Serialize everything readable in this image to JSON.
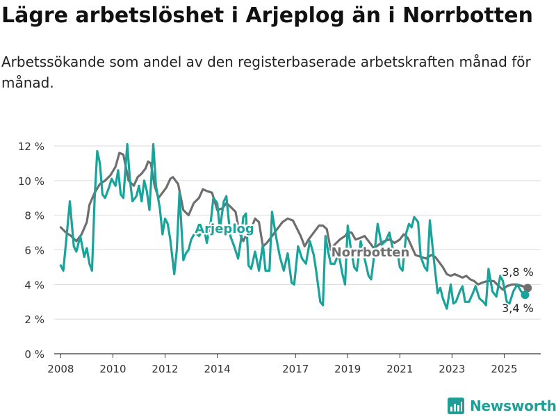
{
  "header": {
    "title": "Lägre arbetslöshet i Arjeplog än i Norrbotten",
    "subtitle": "Arbetssökande som andel av den registerbaserade arbetskraften månad för månad."
  },
  "brand": {
    "name": "Newsworthy"
  },
  "chart_data": {
    "type": "line",
    "title": "Lägre arbetslöshet i Arjeplog än i Norrbotten",
    "subtitle": "Arbetssökande som andel av den registerbaserade arbetskraften månad för månad.",
    "xlabel": "",
    "ylabel": "",
    "xlim": [
      2007.75,
      2026.4
    ],
    "ylim": [
      0,
      12
    ],
    "grid": true,
    "legend": "inline",
    "x_ticks": [
      2008,
      2010,
      2012,
      2014,
      2017,
      2019,
      2021,
      2023,
      2025
    ],
    "x_tick_labels": [
      "2008",
      "2010",
      "2012",
      "2014",
      "2017",
      "2019",
      "2021",
      "2023",
      "2025"
    ],
    "y_ticks": [
      0,
      2,
      4,
      6,
      8,
      10,
      12
    ],
    "y_tick_labels": [
      "0 %",
      "2 %",
      "4 %",
      "6 %",
      "8 %",
      "10 %",
      "12 %"
    ],
    "colors": {
      "Arjeplog": "#1aa39a",
      "Norrbotten": "#6e6e6e"
    },
    "series": [
      {
        "name": "Norrbotten",
        "color": "#6e6e6e",
        "label": "Norrbotten",
        "end_label": "3,8 %",
        "points": [
          [
            2008.0,
            7.3
          ],
          [
            2008.2,
            7.0
          ],
          [
            2008.4,
            6.8
          ],
          [
            2008.6,
            6.5
          ],
          [
            2008.8,
            6.9
          ],
          [
            2009.0,
            7.6
          ],
          [
            2009.1,
            8.6
          ],
          [
            2009.3,
            9.3
          ],
          [
            2009.5,
            9.8
          ],
          [
            2009.7,
            10.0
          ],
          [
            2009.9,
            10.3
          ],
          [
            2010.1,
            10.8
          ],
          [
            2010.25,
            11.6
          ],
          [
            2010.4,
            11.5
          ],
          [
            2010.6,
            10.0
          ],
          [
            2010.8,
            9.7
          ],
          [
            2010.95,
            10.2
          ],
          [
            2011.1,
            10.4
          ],
          [
            2011.25,
            10.7
          ],
          [
            2011.35,
            11.1
          ],
          [
            2011.45,
            11.0
          ],
          [
            2011.6,
            9.7
          ],
          [
            2011.75,
            9.0
          ],
          [
            2011.9,
            9.3
          ],
          [
            2012.05,
            9.6
          ],
          [
            2012.2,
            10.1
          ],
          [
            2012.3,
            10.2
          ],
          [
            2012.5,
            9.8
          ],
          [
            2012.7,
            8.3
          ],
          [
            2012.9,
            8.0
          ],
          [
            2013.1,
            8.7
          ],
          [
            2013.3,
            9.0
          ],
          [
            2013.45,
            9.5
          ],
          [
            2013.6,
            9.4
          ],
          [
            2013.8,
            9.3
          ],
          [
            2014.0,
            8.3
          ],
          [
            2014.2,
            8.4
          ],
          [
            2014.35,
            8.7
          ],
          [
            2014.5,
            8.5
          ],
          [
            2014.7,
            8.2
          ],
          [
            2014.85,
            7.0
          ],
          [
            2015.0,
            6.5
          ],
          [
            2015.15,
            7.0
          ],
          [
            2015.3,
            7.2
          ],
          [
            2015.45,
            7.8
          ],
          [
            2015.6,
            7.6
          ],
          [
            2015.75,
            6.2
          ],
          [
            2015.9,
            6.4
          ],
          [
            2016.1,
            6.8
          ],
          [
            2016.3,
            7.2
          ],
          [
            2016.5,
            7.6
          ],
          [
            2016.7,
            7.8
          ],
          [
            2016.9,
            7.7
          ],
          [
            2017.0,
            7.4
          ],
          [
            2017.2,
            6.8
          ],
          [
            2017.35,
            6.2
          ],
          [
            2017.5,
            6.6
          ],
          [
            2017.7,
            7.0
          ],
          [
            2017.9,
            7.4
          ],
          [
            2018.05,
            7.4
          ],
          [
            2018.2,
            7.2
          ],
          [
            2018.35,
            6.0
          ],
          [
            2018.5,
            6.3
          ],
          [
            2018.7,
            6.6
          ],
          [
            2018.9,
            6.8
          ],
          [
            2019.0,
            7.0
          ],
          [
            2019.15,
            7.0
          ],
          [
            2019.3,
            6.6
          ],
          [
            2019.5,
            6.7
          ],
          [
            2019.65,
            6.8
          ],
          [
            2019.8,
            6.5
          ],
          [
            2020.0,
            6.1
          ],
          [
            2020.2,
            6.3
          ],
          [
            2020.4,
            6.5
          ],
          [
            2020.6,
            6.6
          ],
          [
            2020.8,
            6.4
          ],
          [
            2021.0,
            6.6
          ],
          [
            2021.15,
            6.9
          ],
          [
            2021.3,
            6.7
          ],
          [
            2021.45,
            6.2
          ],
          [
            2021.6,
            5.7
          ],
          [
            2021.8,
            5.6
          ],
          [
            2022.0,
            5.5
          ],
          [
            2022.2,
            5.7
          ],
          [
            2022.35,
            5.6
          ],
          [
            2022.5,
            5.3
          ],
          [
            2022.65,
            5.0
          ],
          [
            2022.8,
            4.6
          ],
          [
            2022.95,
            4.5
          ],
          [
            2023.1,
            4.6
          ],
          [
            2023.25,
            4.5
          ],
          [
            2023.4,
            4.4
          ],
          [
            2023.55,
            4.5
          ],
          [
            2023.7,
            4.3
          ],
          [
            2023.85,
            4.2
          ],
          [
            2024.0,
            4.0
          ],
          [
            2024.15,
            4.1
          ],
          [
            2024.35,
            4.2
          ],
          [
            2024.6,
            4.2
          ],
          [
            2024.8,
            3.9
          ],
          [
            2024.95,
            3.7
          ],
          [
            2025.1,
            3.9
          ],
          [
            2025.3,
            4.0
          ],
          [
            2025.5,
            4.0
          ],
          [
            2025.7,
            3.9
          ],
          [
            2025.9,
            3.8
          ]
        ]
      },
      {
        "name": "Arjeplog",
        "color": "#1aa39a",
        "label": "Arjeplog",
        "end_label": "3,4 %",
        "points": [
          [
            2008.0,
            5.1
          ],
          [
            2008.1,
            4.8
          ],
          [
            2008.25,
            7.2
          ],
          [
            2008.35,
            8.8
          ],
          [
            2008.5,
            6.2
          ],
          [
            2008.6,
            5.9
          ],
          [
            2008.75,
            6.8
          ],
          [
            2008.9,
            5.6
          ],
          [
            2009.0,
            6.1
          ],
          [
            2009.1,
            5.2
          ],
          [
            2009.2,
            4.8
          ],
          [
            2009.3,
            9.0
          ],
          [
            2009.4,
            11.7
          ],
          [
            2009.5,
            11.0
          ],
          [
            2009.6,
            9.2
          ],
          [
            2009.7,
            9.0
          ],
          [
            2009.85,
            9.6
          ],
          [
            2009.95,
            10.1
          ],
          [
            2010.1,
            9.7
          ],
          [
            2010.2,
            10.6
          ],
          [
            2010.3,
            9.2
          ],
          [
            2010.4,
            9.0
          ],
          [
            2010.55,
            12.1
          ],
          [
            2010.65,
            10.1
          ],
          [
            2010.75,
            8.8
          ],
          [
            2010.9,
            9.1
          ],
          [
            2011.0,
            9.7
          ],
          [
            2011.1,
            8.8
          ],
          [
            2011.2,
            10.0
          ],
          [
            2011.3,
            9.4
          ],
          [
            2011.4,
            8.3
          ],
          [
            2011.55,
            12.1
          ],
          [
            2011.65,
            9.7
          ],
          [
            2011.8,
            8.4
          ],
          [
            2011.9,
            6.9
          ],
          [
            2012.0,
            7.8
          ],
          [
            2012.1,
            7.5
          ],
          [
            2012.2,
            6.6
          ],
          [
            2012.35,
            4.6
          ],
          [
            2012.45,
            6.0
          ],
          [
            2012.55,
            9.3
          ],
          [
            2012.7,
            5.4
          ],
          [
            2012.8,
            5.8
          ],
          [
            2012.9,
            6.0
          ],
          [
            2013.0,
            6.6
          ],
          [
            2013.15,
            7.0
          ],
          [
            2013.3,
            6.8
          ],
          [
            2013.5,
            7.2
          ],
          [
            2013.6,
            6.4
          ],
          [
            2013.75,
            7.6
          ],
          [
            2013.85,
            9.0
          ],
          [
            2014.0,
            8.7
          ],
          [
            2014.1,
            7.2
          ],
          [
            2014.25,
            8.8
          ],
          [
            2014.35,
            9.1
          ],
          [
            2014.5,
            6.8
          ],
          [
            2014.65,
            6.2
          ],
          [
            2014.8,
            5.5
          ],
          [
            2014.9,
            6.5
          ],
          [
            2015.0,
            7.9
          ],
          [
            2015.1,
            8.1
          ],
          [
            2015.2,
            5.1
          ],
          [
            2015.3,
            4.9
          ],
          [
            2015.45,
            5.9
          ],
          [
            2015.6,
            4.8
          ],
          [
            2015.75,
            6.3
          ],
          [
            2015.85,
            4.8
          ],
          [
            2016.0,
            4.8
          ],
          [
            2016.1,
            8.2
          ],
          [
            2016.25,
            6.8
          ],
          [
            2016.4,
            5.6
          ],
          [
            2016.55,
            4.8
          ],
          [
            2016.7,
            5.8
          ],
          [
            2016.85,
            4.1
          ],
          [
            2016.95,
            4.0
          ],
          [
            2017.1,
            6.2
          ],
          [
            2017.25,
            5.5
          ],
          [
            2017.4,
            5.2
          ],
          [
            2017.55,
            6.5
          ],
          [
            2017.7,
            5.7
          ],
          [
            2017.8,
            4.7
          ],
          [
            2017.95,
            3.0
          ],
          [
            2018.05,
            2.8
          ],
          [
            2018.15,
            6.8
          ],
          [
            2018.25,
            5.9
          ],
          [
            2018.35,
            5.2
          ],
          [
            2018.5,
            5.2
          ],
          [
            2018.65,
            5.8
          ],
          [
            2018.8,
            4.6
          ],
          [
            2018.9,
            4.0
          ],
          [
            2019.0,
            7.4
          ],
          [
            2019.1,
            6.3
          ],
          [
            2019.25,
            5.0
          ],
          [
            2019.35,
            4.8
          ],
          [
            2019.5,
            6.5
          ],
          [
            2019.65,
            5.5
          ],
          [
            2019.8,
            4.5
          ],
          [
            2019.9,
            4.3
          ],
          [
            2020.0,
            5.5
          ],
          [
            2020.15,
            7.5
          ],
          [
            2020.3,
            6.3
          ],
          [
            2020.45,
            6.5
          ],
          [
            2020.6,
            7.0
          ],
          [
            2020.75,
            5.9
          ],
          [
            2020.9,
            6.0
          ],
          [
            2021.0,
            5.0
          ],
          [
            2021.1,
            4.8
          ],
          [
            2021.25,
            7.0
          ],
          [
            2021.35,
            7.5
          ],
          [
            2021.45,
            7.3
          ],
          [
            2021.55,
            7.9
          ],
          [
            2021.7,
            7.6
          ],
          [
            2021.8,
            5.6
          ],
          [
            2021.95,
            5.0
          ],
          [
            2022.05,
            4.8
          ],
          [
            2022.15,
            7.7
          ],
          [
            2022.3,
            5.5
          ],
          [
            2022.45,
            3.5
          ],
          [
            2022.55,
            3.8
          ],
          [
            2022.65,
            3.2
          ],
          [
            2022.8,
            2.6
          ],
          [
            2022.95,
            4.0
          ],
          [
            2023.05,
            2.9
          ],
          [
            2023.15,
            3.0
          ],
          [
            2023.3,
            3.6
          ],
          [
            2023.4,
            3.9
          ],
          [
            2023.5,
            3.0
          ],
          [
            2023.65,
            3.0
          ],
          [
            2023.8,
            3.5
          ],
          [
            2023.9,
            3.9
          ],
          [
            2024.05,
            3.2
          ],
          [
            2024.2,
            3.0
          ],
          [
            2024.3,
            2.8
          ],
          [
            2024.4,
            4.9
          ],
          [
            2024.55,
            3.6
          ],
          [
            2024.7,
            3.3
          ],
          [
            2024.85,
            4.5
          ],
          [
            2024.95,
            4.2
          ],
          [
            2025.1,
            3.0
          ],
          [
            2025.2,
            2.9
          ],
          [
            2025.35,
            3.6
          ],
          [
            2025.5,
            4.0
          ],
          [
            2025.65,
            3.6
          ],
          [
            2025.8,
            3.4
          ]
        ]
      }
    ]
  }
}
